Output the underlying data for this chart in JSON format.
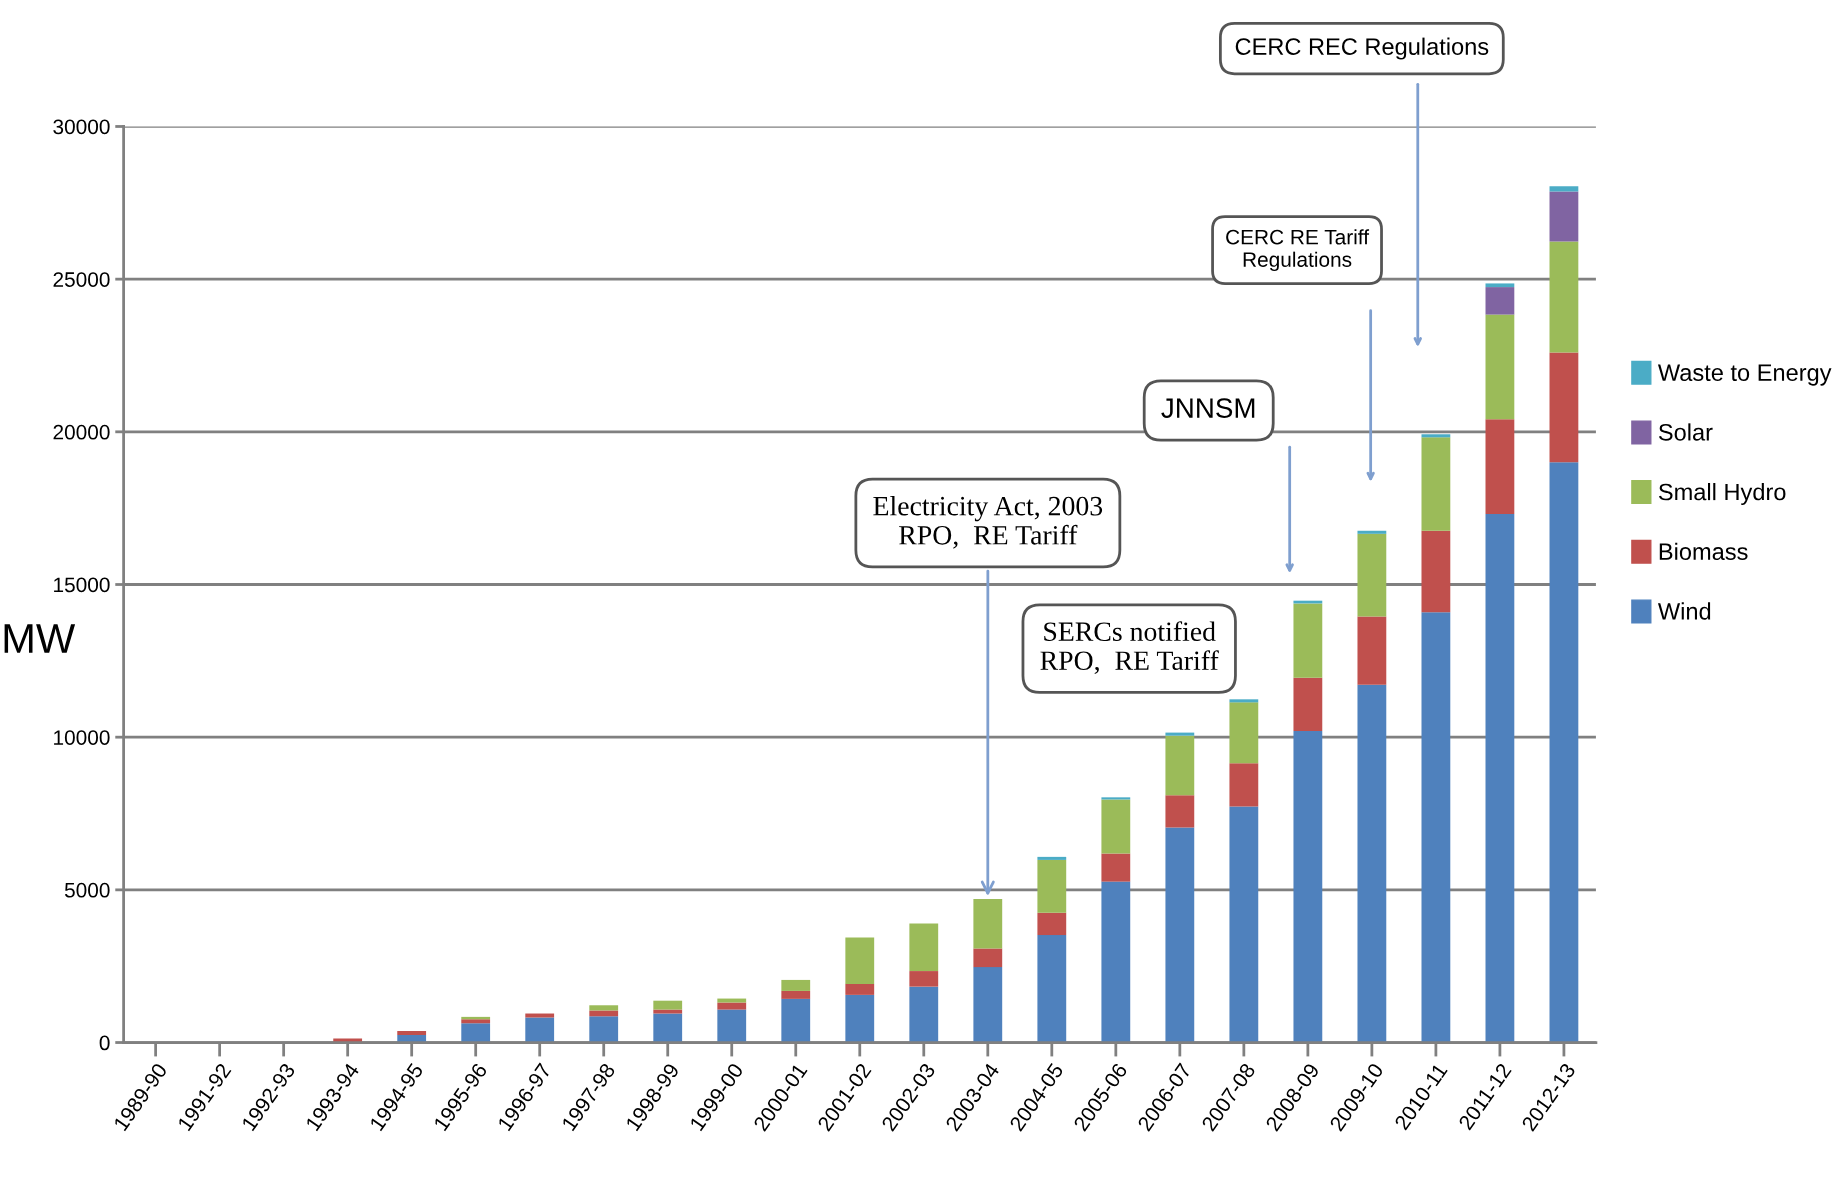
{
  "chart_data": {
    "type": "bar",
    "stacked": true,
    "ylabel": "MW",
    "categories": [
      "1989-90",
      "1991-92",
      "1992-93",
      "1993-94",
      "1994-95",
      "1995-96",
      "1996-97",
      "1997-98",
      "1998-99",
      "1999-00",
      "2000-01",
      "2001-02",
      "2002-03",
      "2003-04",
      "2004-05",
      "2005-06",
      "2006-07",
      "2007-08",
      "2008-09",
      "2009-10",
      "2010-11",
      "2011-12",
      "2012-13"
    ],
    "series": [
      {
        "name": "Wind",
        "color": "#4f81bd",
        "values": [
          0,
          0,
          0,
          0,
          250,
          630,
          820,
          860,
          950,
          1080,
          1430,
          1560,
          1830,
          2470,
          3520,
          5270,
          7040,
          7730,
          10200,
          11720,
          14090,
          17310,
          19000
        ]
      },
      {
        "name": "Biomass",
        "color": "#c0504d",
        "values": [
          0,
          0,
          0,
          130,
          130,
          130,
          130,
          190,
          130,
          230,
          260,
          360,
          510,
          610,
          730,
          920,
          1060,
          1420,
          1750,
          2230,
          2670,
          3100,
          3600
        ]
      },
      {
        "name": "Small Hydro",
        "color": "#9bbb59",
        "values": [
          0,
          0,
          0,
          0,
          0,
          80,
          0,
          170,
          290,
          130,
          360,
          1520,
          1560,
          1620,
          1730,
          1770,
          1950,
          1990,
          2430,
          2710,
          3060,
          3430,
          3630
        ]
      },
      {
        "name": "Solar",
        "color": "#8064a2",
        "values": [
          0,
          0,
          0,
          0,
          0,
          0,
          0,
          0,
          0,
          0,
          0,
          0,
          0,
          0,
          0,
          0,
          0,
          0,
          0,
          0,
          0,
          900,
          1640
        ]
      },
      {
        "name": "Waste to Energy",
        "color": "#4bacc6",
        "values": [
          0,
          0,
          0,
          0,
          0,
          0,
          0,
          0,
          0,
          0,
          0,
          0,
          0,
          0,
          100,
          70,
          100,
          100,
          90,
          100,
          100,
          120,
          170
        ]
      }
    ],
    "ylim": [
      0,
      30000
    ],
    "yticks": [
      0,
      5000,
      10000,
      15000,
      20000,
      25000,
      30000
    ],
    "grid": "y",
    "legend": "right",
    "annotations": [
      {
        "text": "Electricity Act, 2003\nRPO,  RE Tariff",
        "x": "2003-04",
        "y": 4700
      },
      "SERCs notified\nRPO,  RE Tariff",
      "JNNSM",
      "CERC RE Tariff\nRegulations",
      "CERC REC Regulations"
    ]
  }
}
